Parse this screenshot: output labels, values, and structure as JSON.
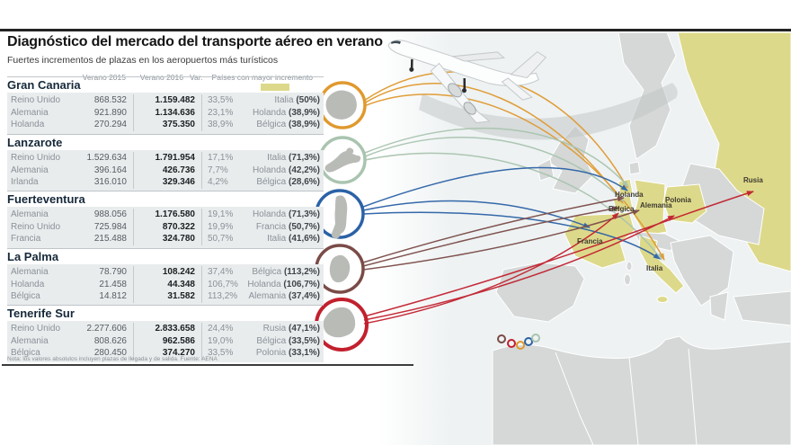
{
  "header": {
    "title": "Diagnóstico del mercado del transporte aéreo en verano",
    "subtitle": "Fuertes incrementos de plazas en los aeropuertos más turísticos"
  },
  "table": {
    "columns": [
      "Verano 2015",
      "Verano 2016",
      "Var.",
      "Países con mayor incremento"
    ],
    "sections": [
      {
        "airport": "Gran Canaria",
        "color": "#e0992e",
        "rows": [
          {
            "country": "Reino Unido",
            "v2015": "868.532",
            "v2016": "1.159.482",
            "var": "33,5%"
          },
          {
            "country": "Alemania",
            "v2015": "921.890",
            "v2016": "1.134.636",
            "var": "23,1%"
          },
          {
            "country": "Holanda",
            "v2015": "270.294",
            "v2016": "375.350",
            "var": "38,9%"
          }
        ],
        "top_increases": [
          {
            "country": "Italia",
            "pct": "(50%)"
          },
          {
            "country": "Holanda",
            "pct": "(38,9%)"
          },
          {
            "country": "Bélgica",
            "pct": "(38,9%)"
          }
        ]
      },
      {
        "airport": "Lanzarote",
        "color": "#a9c4af",
        "rows": [
          {
            "country": "Reino Unido",
            "v2015": "1.529.634",
            "v2016": "1.791.954",
            "var": "17,1%"
          },
          {
            "country": "Alemania",
            "v2015": "396.164",
            "v2016": "426.736",
            "var": "7,7%"
          },
          {
            "country": "Irlanda",
            "v2015": "316.010",
            "v2016": "329.346",
            "var": "4,2%"
          }
        ],
        "top_increases": [
          {
            "country": "Italia",
            "pct": "(71,3%)"
          },
          {
            "country": "Holanda",
            "pct": "(42,2%)"
          },
          {
            "country": "Bélgica",
            "pct": "(28,6%)"
          }
        ]
      },
      {
        "airport": "Fuerteventura",
        "color": "#2b62a6",
        "rows": [
          {
            "country": "Alemania",
            "v2015": "988.056",
            "v2016": "1.176.580",
            "var": "19,1%"
          },
          {
            "country": "Reino Unido",
            "v2015": "725.984",
            "v2016": "870.322",
            "var": "19,9%"
          },
          {
            "country": "Francia",
            "v2015": "215.488",
            "v2016": "324.780",
            "var": "50,7%"
          }
        ],
        "top_increases": [
          {
            "country": "Holanda",
            "pct": "(71,3%)"
          },
          {
            "country": "Francia",
            "pct": "(50,7%)"
          },
          {
            "country": "Italia",
            "pct": "(41,6%)"
          }
        ]
      },
      {
        "airport": "La Palma",
        "color": "#7a4b47",
        "rows": [
          {
            "country": "Alemania",
            "v2015": "78.790",
            "v2016": "108.242",
            "var": "37,4%"
          },
          {
            "country": "Holanda",
            "v2015": "21.458",
            "v2016": "44.348",
            "var": "106,7%"
          },
          {
            "country": "Bélgica",
            "v2015": "14.812",
            "v2016": "31.582",
            "var": "113,2%"
          }
        ],
        "top_increases": [
          {
            "country": "Bélgica",
            "pct": "(113,2%)"
          },
          {
            "country": "Holanda",
            "pct": "(106,7%)"
          },
          {
            "country": "Alemania",
            "pct": "(37,4%)"
          }
        ]
      },
      {
        "airport": "Tenerife Sur",
        "color": "#c2202e",
        "rows": [
          {
            "country": "Reino Unido",
            "v2015": "2.277.606",
            "v2016": "2.833.658",
            "var": "24,4%"
          },
          {
            "country": "Alemania",
            "v2015": "808.626",
            "v2016": "962.586",
            "var": "19,0%"
          },
          {
            "country": "Bélgica",
            "v2015": "280.450",
            "v2016": "374.270",
            "var": "33,5%"
          }
        ],
        "top_increases": [
          {
            "country": "Rusia",
            "pct": "(47,1%)"
          },
          {
            "country": "Bélgica",
            "pct": "(33,5%)"
          },
          {
            "country": "Polonia",
            "pct": "(33,1%)"
          }
        ]
      }
    ]
  },
  "map": {
    "highlight_color": "#ddd98a",
    "land_color": "#d5d8d7",
    "sea_color": "#eef2f3",
    "labels": [
      "Holanda",
      "Bélgica",
      "Alemania",
      "Polonia",
      "Rusia",
      "Francia",
      "Italia"
    ]
  },
  "footnote": "Nota: los valores absolutos incluyen plazas de llegada y de salida. Fuente: AENA"
}
